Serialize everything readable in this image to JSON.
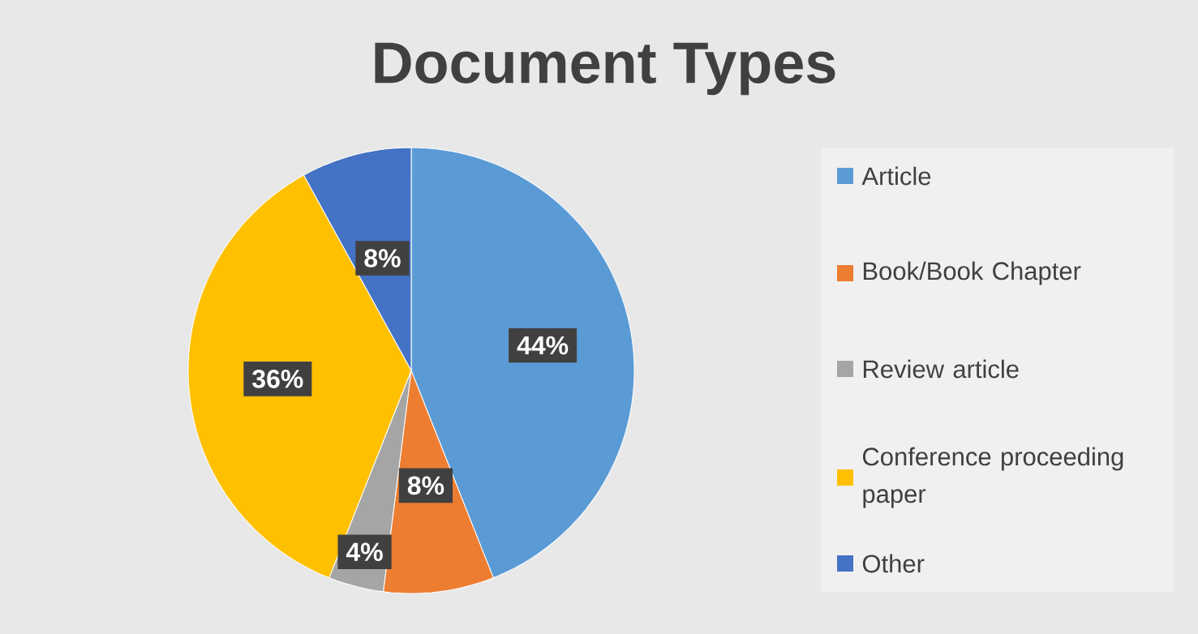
{
  "chart_data": {
    "type": "pie",
    "title": "Document Types",
    "categories": [
      "Article",
      "Book/Book Chapter",
      "Review article",
      "Conference proceeding paper",
      "Other"
    ],
    "values": [
      44,
      8,
      4,
      36,
      8
    ],
    "value_labels": [
      "44%",
      "8%",
      "4%",
      "36%",
      "8%"
    ],
    "colors": [
      "#5b9bd5",
      "#ed7d31",
      "#a5a5a5",
      "#ffc000",
      "#4472c4"
    ],
    "legend": "right"
  }
}
